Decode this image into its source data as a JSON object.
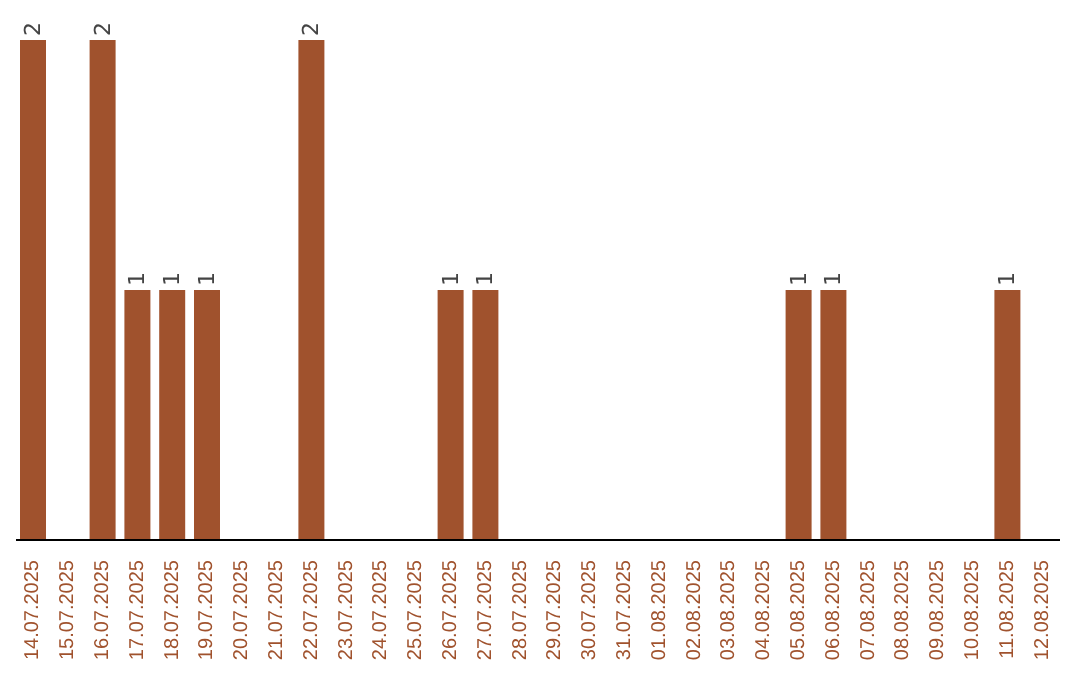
{
  "chart_data": {
    "type": "bar",
    "categories": [
      "14.07.2025",
      "15.07.2025",
      "16.07.2025",
      "17.07.2025",
      "18.07.2025",
      "19.07.2025",
      "20.07.2025",
      "21.07.2025",
      "22.07.2025",
      "23.07.2025",
      "24.07.2025",
      "25.07.2025",
      "26.07.2025",
      "27.07.2025",
      "28.07.2025",
      "29.07.2025",
      "30.07.2025",
      "31.07.2025",
      "01.08.2025",
      "02.08.2025",
      "03.08.2025",
      "04.08.2025",
      "05.08.2025",
      "06.08.2025",
      "07.08.2025",
      "08.08.2025",
      "09.08.2025",
      "10.08.2025",
      "11.08.2025",
      "12.08.2025"
    ],
    "values": [
      2,
      0,
      2,
      1,
      1,
      1,
      0,
      0,
      2,
      0,
      0,
      0,
      1,
      1,
      0,
      0,
      0,
      0,
      0,
      0,
      0,
      0,
      1,
      1,
      0,
      0,
      0,
      0,
      1,
      0
    ],
    "value_labels": [
      "2",
      null,
      "2",
      "1",
      "1",
      "1",
      null,
      null,
      "2",
      null,
      null,
      null,
      "1",
      "1",
      null,
      null,
      null,
      null,
      null,
      null,
      null,
      null,
      "1",
      "1",
      null,
      null,
      null,
      null,
      "1",
      null
    ],
    "color": "#a0522d",
    "ylim": [
      0,
      2
    ],
    "tick_labels": "x"
  }
}
